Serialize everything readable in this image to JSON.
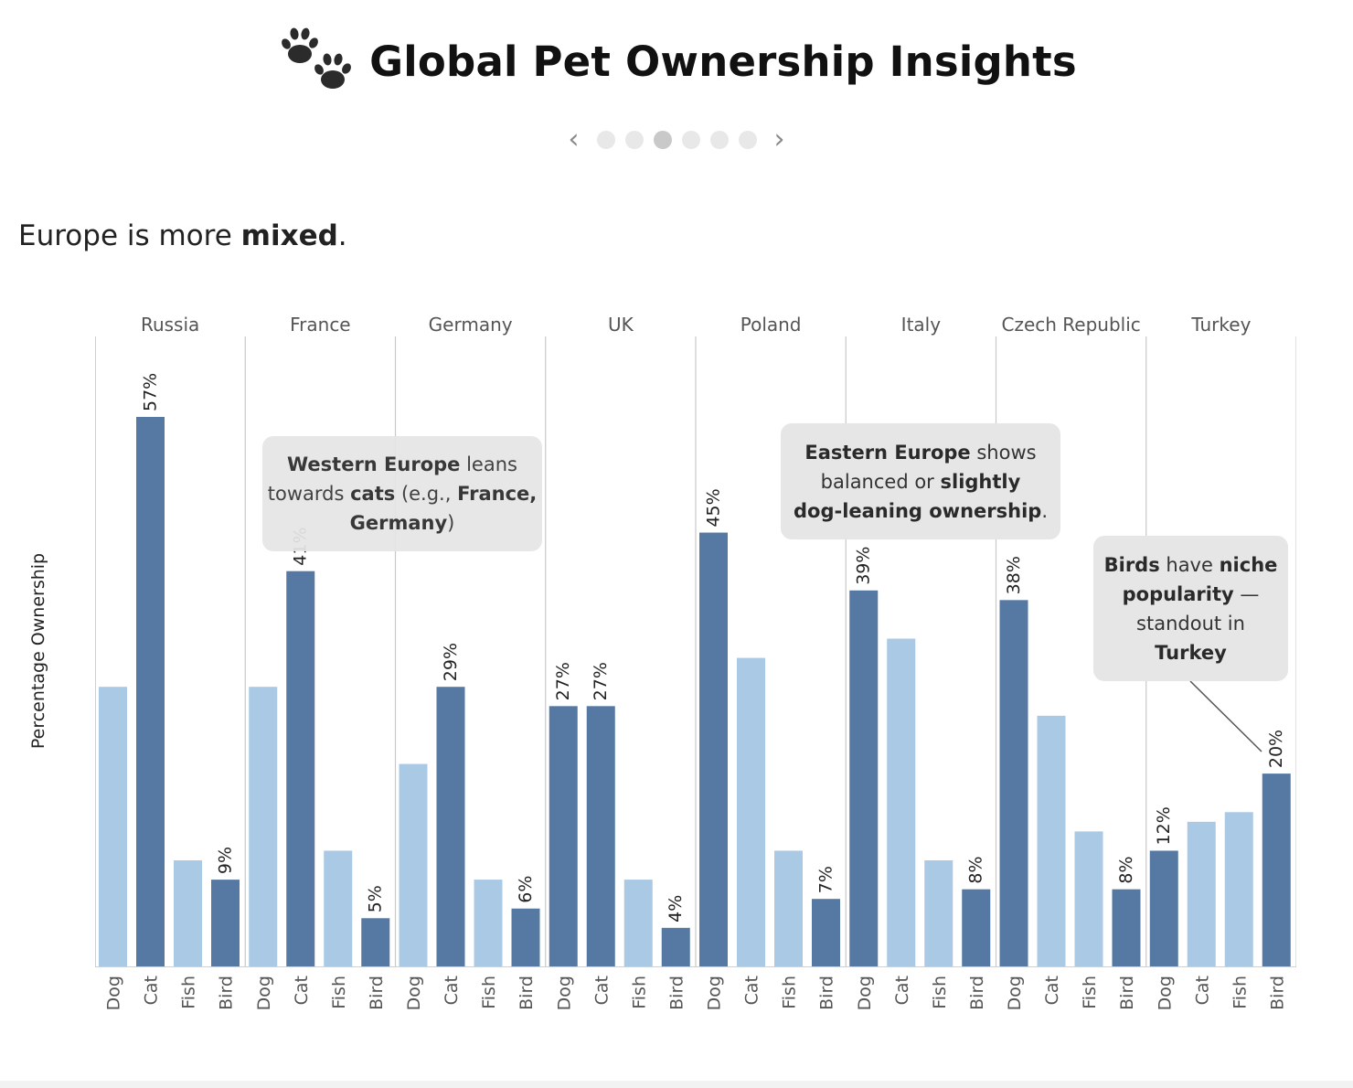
{
  "header": {
    "title": "Global Pet Ownership Insights",
    "icon": "paw-prints-icon"
  },
  "pager": {
    "prev_label": "‹",
    "next_label": "›",
    "dots": 6,
    "active_index": 2
  },
  "subtitle": {
    "prefix": "Europe is more ",
    "bold": "mixed",
    "suffix": "."
  },
  "annotations": {
    "western": {
      "l1_bold": "Western Europe",
      "l1_rest": " leans",
      "l2_a": "towards ",
      "l2_bold": "cats",
      "l2_b": " (e.g., ",
      "l2_bold2": "France,",
      "l3_bold": "Germany",
      "l3_rest": ")"
    },
    "eastern": {
      "l1_bold": "Eastern Europe",
      "l1_rest": " shows",
      "l2_a": "balanced or ",
      "l2_bold": "slightly",
      "l3_bold": "dog-leaning ownership",
      "l3_rest": "."
    },
    "birds": {
      "l1_bold": "Birds",
      "l1_a": " have ",
      "l1_bold2": "niche",
      "l2_bold": "popularity",
      "l2_rest": " —",
      "l3": "standout in",
      "l4_bold": "Turkey"
    }
  },
  "chart_data": {
    "type": "bar",
    "ylabel": "Percentage Ownership",
    "ylim": [
      0,
      66
    ],
    "grid": false,
    "colors": {
      "highlight": "#5679a4",
      "base": "#a9c9e4"
    },
    "categories": [
      "Dog",
      "Cat",
      "Fish",
      "Bird"
    ],
    "groups": [
      {
        "name": "Russia",
        "values": [
          29,
          57,
          11,
          9
        ],
        "highlight": [
          1,
          3
        ],
        "labels": [
          "",
          "57%",
          "",
          "9%"
        ]
      },
      {
        "name": "France",
        "values": [
          29,
          41,
          12,
          5
        ],
        "highlight": [
          1,
          3
        ],
        "labels": [
          "",
          "41%",
          "",
          "5%"
        ]
      },
      {
        "name": "Germany",
        "values": [
          21,
          29,
          9,
          6
        ],
        "highlight": [
          1,
          3
        ],
        "labels": [
          "",
          "29%",
          "",
          "6%"
        ]
      },
      {
        "name": "UK",
        "values": [
          27,
          27,
          9,
          4
        ],
        "highlight": [
          0,
          1,
          3
        ],
        "labels": [
          "27%",
          "27%",
          "",
          "4%"
        ]
      },
      {
        "name": "Poland",
        "values": [
          45,
          32,
          12,
          7
        ],
        "highlight": [
          0,
          3
        ],
        "labels": [
          "45%",
          "",
          "",
          "7%"
        ]
      },
      {
        "name": "Italy",
        "values": [
          39,
          34,
          11,
          8
        ],
        "highlight": [
          0,
          3
        ],
        "labels": [
          "39%",
          "",
          "",
          "8%"
        ]
      },
      {
        "name": "Czech Republic",
        "values": [
          38,
          26,
          14,
          8
        ],
        "highlight": [
          0,
          3
        ],
        "labels": [
          "38%",
          "",
          "",
          "8%"
        ]
      },
      {
        "name": "Turkey",
        "values": [
          12,
          15,
          16,
          20
        ],
        "highlight": [
          0,
          3
        ],
        "labels": [
          "12%",
          "",
          "",
          "20%"
        ]
      }
    ]
  }
}
